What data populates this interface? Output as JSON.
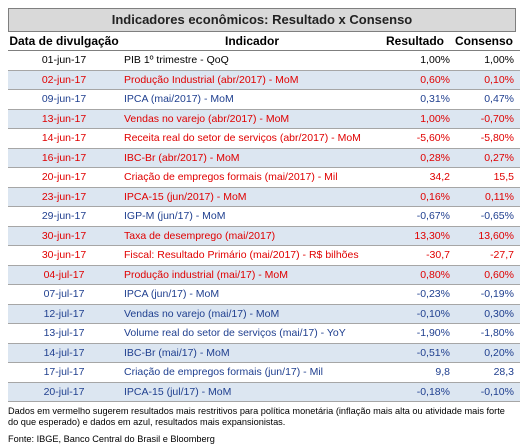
{
  "title": "Indicadores econômicos: Resultado x Consenso",
  "headers": {
    "date": "Data de divulgação",
    "indicator": "Indicador",
    "result": "Resultado",
    "consensus": "Consenso"
  },
  "rows": [
    {
      "date": "01-jun-17",
      "indicator": "PIB 1º trimestre - QoQ",
      "result": "1,00%",
      "consensus": "1,00%",
      "color": "black"
    },
    {
      "date": "02-jun-17",
      "indicator": "Produção Industrial (abr/2017) - MoM",
      "result": "0,60%",
      "consensus": "0,10%",
      "color": "red"
    },
    {
      "date": "09-jun-17",
      "indicator": "IPCA (mai/2017) - MoM",
      "result": "0,31%",
      "consensus": "0,47%",
      "color": "blue"
    },
    {
      "date": "13-jun-17",
      "indicator": "Vendas no varejo (abr/2017) - MoM",
      "result": "1,00%",
      "consensus": "-0,70%",
      "color": "red"
    },
    {
      "date": "14-jun-17",
      "indicator": "Receita real do setor de serviços (abr/2017) - MoM",
      "result": "-5,60%",
      "consensus": "-5,80%",
      "color": "red"
    },
    {
      "date": "16-jun-17",
      "indicator": "IBC-Br (abr/2017) - MoM",
      "result": "0,28%",
      "consensus": "0,27%",
      "color": "red"
    },
    {
      "date": "20-jun-17",
      "indicator": "Criação de empregos formais (mai/2017) - Mil",
      "result": "34,2",
      "consensus": "15,5",
      "color": "red"
    },
    {
      "date": "23-jun-17",
      "indicator": "IPCA-15 (jun/2017) - MoM",
      "result": "0,16%",
      "consensus": "0,11%",
      "color": "red"
    },
    {
      "date": "29-jun-17",
      "indicator": "IGP-M (jun/17) - MoM",
      "result": "-0,67%",
      "consensus": "-0,65%",
      "color": "blue"
    },
    {
      "date": "30-jun-17",
      "indicator": "Taxa de desemprego (mai/2017)",
      "result": "13,30%",
      "consensus": "13,60%",
      "color": "red"
    },
    {
      "date": "30-jun-17",
      "indicator": "Fiscal: Resultado Primário (mai/2017) - R$ bilhões",
      "result": "-30,7",
      "consensus": "-27,7",
      "color": "red"
    },
    {
      "date": "04-jul-17",
      "indicator": "Produção industrial (mai/17) - MoM",
      "result": "0,80%",
      "consensus": "0,60%",
      "color": "red"
    },
    {
      "date": "07-jul-17",
      "indicator": "IPCA (jun/17) - MoM",
      "result": "-0,23%",
      "consensus": "-0,19%",
      "color": "blue"
    },
    {
      "date": "12-jul-17",
      "indicator": "Vendas no varejo (mai/17) - MoM",
      "result": "-0,10%",
      "consensus": "0,30%",
      "color": "blue"
    },
    {
      "date": "13-jul-17",
      "indicator": "Volume real do setor de serviços (mai/17) - YoY",
      "result": "-1,90%",
      "consensus": "-1,80%",
      "color": "blue"
    },
    {
      "date": "14-jul-17",
      "indicator": "IBC-Br (mai/17) - MoM",
      "result": "-0,51%",
      "consensus": "0,20%",
      "color": "blue"
    },
    {
      "date": "17-jul-17",
      "indicator": "Criação de empregos formais (jun/17) - Mil",
      "result": "9,8",
      "consensus": "28,3",
      "color": "blue"
    },
    {
      "date": "20-jul-17",
      "indicator": "IPCA-15 (jul/17) - MoM",
      "result": "-0,18%",
      "consensus": "-0,10%",
      "color": "blue"
    }
  ],
  "note": "Dados em vermelho sugerem resultados mais restritivos para política monetária (inflação mais alta ou atividade mais forte do que esperado) e dados em azul, resultados mais expansionistas.",
  "source": "Fonte: IBGE, Banco Central do Brasil e Bloomberg",
  "colors": {
    "red": "#e00000",
    "blue": "#1f3f8f",
    "header_bg": "#d9d9d9",
    "alt_row_bg": "#dce6f1"
  }
}
